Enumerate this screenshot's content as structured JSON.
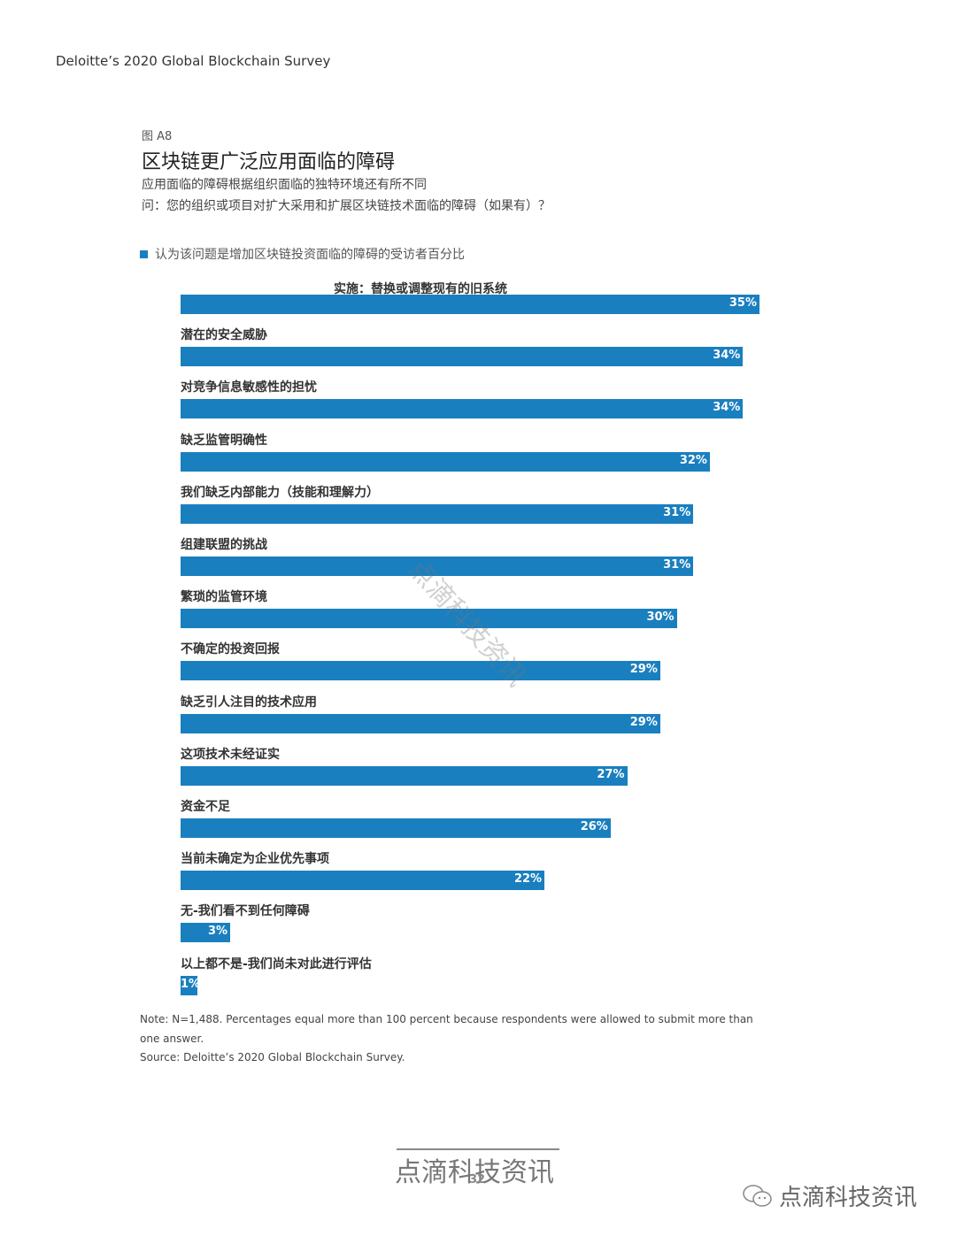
{
  "header": "Deloitte’s 2020 Global Blockchain Survey",
  "figure_number": "图 A8",
  "chart_data": {
    "type": "bar",
    "orientation": "horizontal",
    "title": "区块链更广泛应用面临的障碍",
    "subtitle": "应用面临的障碍根据组织面临的独特环境还有所不同",
    "question": "问：您的组织或项目对扩大采用和扩展区块链技术面临的障碍（如果有）？",
    "legend": "认为该问题是增加区块链投资面临的障碍的受访者百分比",
    "unit": "%",
    "color": "#1a7fbf",
    "xlim": [
      0,
      35
    ],
    "grid": false,
    "categories": [
      "实施：替换或调整现有的旧系统",
      "潜在的安全威胁",
      "对竞争信息敏感性的担忧",
      "缺乏监管明确性",
      "我们缺乏内部能力（技能和理解力）",
      "组建联盟的挑战",
      "繁琐的监管环境",
      "不确定的投资回报",
      "缺乏引人注目的技术应用",
      "这项技术未经证实",
      "资金不足",
      "当前未确定为企业优先事项",
      "无-我们看不到任何障碍",
      "以上都不是-我们尚未对此进行评估"
    ],
    "values": [
      35,
      34,
      34,
      32,
      31,
      31,
      30,
      29,
      29,
      27,
      26,
      22,
      3,
      1
    ],
    "data_labels": [
      "35%",
      "34%",
      "34%",
      "32%",
      "31%",
      "31%",
      "30%",
      "29%",
      "29%",
      "27%",
      "26%",
      "22%",
      "3%",
      "1%"
    ]
  },
  "note": "Note: N=1,488. Percentages equal more than 100 percent because respondents were allowed to submit more than",
  "note2": "one answer.",
  "source": "Source: Deloitte’s 2020 Global Blockchain Survey.",
  "watermark": "点滴科技资讯",
  "page_number": "32",
  "footer_brand": "点滴科技资讯"
}
